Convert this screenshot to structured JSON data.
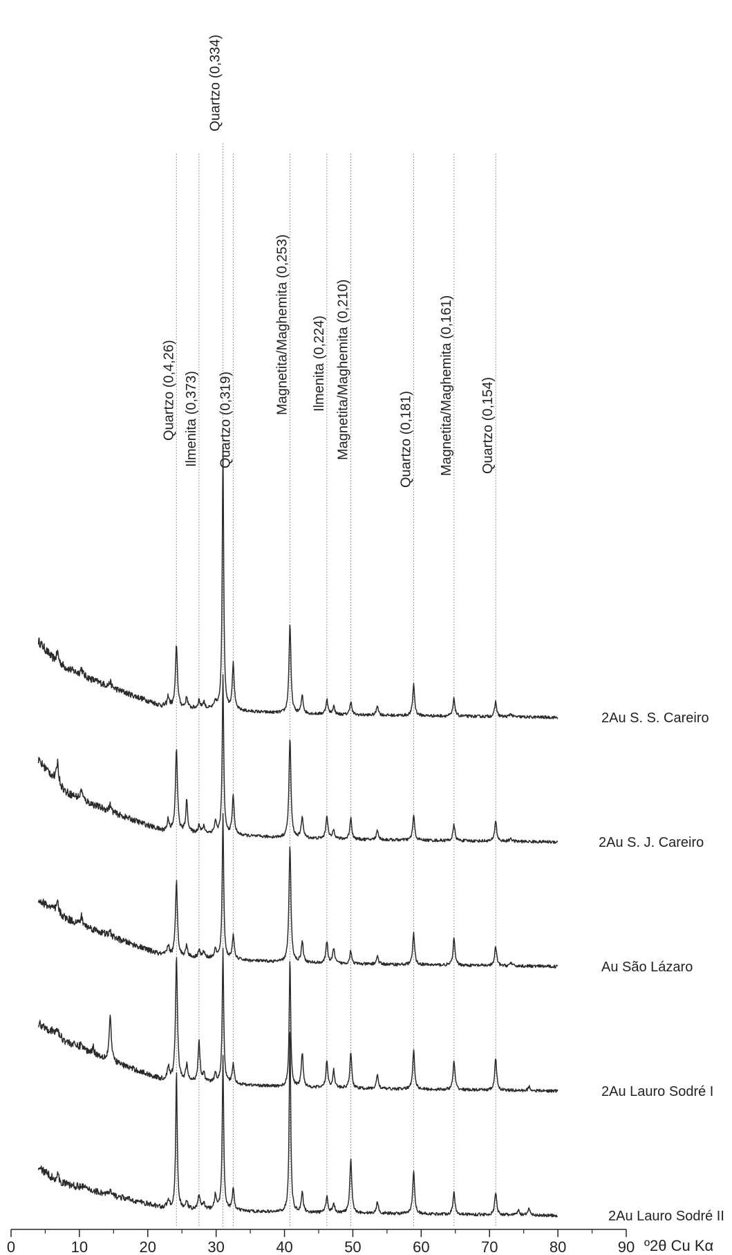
{
  "chart_data": {
    "type": "line",
    "title": "",
    "xlabel": "º2θ Cu Kα",
    "ylabel": "",
    "xlim": [
      0,
      90
    ],
    "x_ticks": [
      0,
      10,
      20,
      30,
      40,
      50,
      60,
      70,
      80,
      90
    ],
    "x_tick_labels": [
      "0",
      "10",
      "20",
      "30",
      "40",
      "50",
      "60",
      "70",
      "80",
      "90"
    ],
    "grid": false,
    "y_axis_shown": false,
    "reference_lines": [
      {
        "x": 24.2,
        "label": "Quartzo (0,4,26)"
      },
      {
        "x": 27.5,
        "label": "Ilmenita (0,373)"
      },
      {
        "x": 31.0,
        "label": "Quartzo (0,334)"
      },
      {
        "x": 32.5,
        "label": "Quartzo (0,319)"
      },
      {
        "x": 40.8,
        "label": "Magnetita/Maghemita (0,253)"
      },
      {
        "x": 46.2,
        "label": "Ilmenita (0,224)"
      },
      {
        "x": 49.7,
        "label": "Magnetita/Maghemita (0,210)"
      },
      {
        "x": 58.9,
        "label": "Quartzo (0,181)"
      },
      {
        "x": 64.8,
        "label": "Magnetita/Maghemita (0,161)"
      },
      {
        "x": 70.9,
        "label": "Quartzo (0,154)"
      }
    ],
    "series": [
      {
        "name": "2Au S. S. Careiro",
        "offset": 4,
        "baseline": [
          [
            4,
            0.92
          ],
          [
            6,
            0.72
          ],
          [
            8,
            0.6
          ],
          [
            12,
            0.45
          ],
          [
            16,
            0.32
          ],
          [
            20,
            0.2
          ],
          [
            22,
            0.14
          ],
          [
            26,
            0.11
          ],
          [
            30,
            0.1
          ],
          [
            35,
            0.07
          ],
          [
            40,
            0.05
          ],
          [
            50,
            0.03
          ],
          [
            60,
            0.02
          ],
          [
            70,
            0.01
          ],
          [
            80,
            0.0
          ]
        ],
        "peaks": [
          [
            6.8,
            0.12
          ],
          [
            10.3,
            0.08
          ],
          [
            14.5,
            0.06
          ],
          [
            23.0,
            0.12
          ],
          [
            24.2,
            0.75
          ],
          [
            25.7,
            0.13
          ],
          [
            27.5,
            0.1
          ],
          [
            28.2,
            0.08
          ],
          [
            29.9,
            0.08
          ],
          [
            31.0,
            3.15
          ],
          [
            32.5,
            0.55
          ],
          [
            40.8,
            1.07
          ],
          [
            42.6,
            0.22
          ],
          [
            46.2,
            0.18
          ],
          [
            47.2,
            0.1
          ],
          [
            49.7,
            0.16
          ],
          [
            53.6,
            0.12
          ],
          [
            58.9,
            0.38
          ],
          [
            64.8,
            0.21
          ],
          [
            70.9,
            0.18
          ],
          [
            73.1,
            0.04
          ]
        ]
      },
      {
        "name": "2Au S. J. Careiro",
        "offset": 3,
        "baseline": [
          [
            4,
            0.98
          ],
          [
            6,
            0.8
          ],
          [
            8,
            0.6
          ],
          [
            12,
            0.45
          ],
          [
            16,
            0.32
          ],
          [
            20,
            0.2
          ],
          [
            22,
            0.14
          ],
          [
            26,
            0.11
          ],
          [
            30,
            0.1
          ],
          [
            35,
            0.07
          ],
          [
            40,
            0.05
          ],
          [
            50,
            0.03
          ],
          [
            60,
            0.02
          ],
          [
            70,
            0.01
          ],
          [
            80,
            0.0
          ]
        ],
        "peaks": [
          [
            6.8,
            0.25
          ],
          [
            10.3,
            0.12
          ],
          [
            14.5,
            0.08
          ],
          [
            23.0,
            0.14
          ],
          [
            24.2,
            1.0
          ],
          [
            25.7,
            0.38
          ],
          [
            27.5,
            0.1
          ],
          [
            28.2,
            0.08
          ],
          [
            29.9,
            0.14
          ],
          [
            31.0,
            1.9
          ],
          [
            32.5,
            0.46
          ],
          [
            40.8,
            1.2
          ],
          [
            42.6,
            0.26
          ],
          [
            46.2,
            0.28
          ],
          [
            47.2,
            0.12
          ],
          [
            49.7,
            0.26
          ],
          [
            53.6,
            0.12
          ],
          [
            58.9,
            0.3
          ],
          [
            64.8,
            0.19
          ],
          [
            70.9,
            0.25
          ],
          [
            73.1,
            0.04
          ]
        ]
      },
      {
        "name": "Au São Lázaro",
        "offset": 2,
        "baseline": [
          [
            4,
            0.8
          ],
          [
            6,
            0.7
          ],
          [
            8,
            0.58
          ],
          [
            12,
            0.45
          ],
          [
            16,
            0.32
          ],
          [
            20,
            0.2
          ],
          [
            22,
            0.14
          ],
          [
            26,
            0.11
          ],
          [
            30,
            0.1
          ],
          [
            35,
            0.07
          ],
          [
            40,
            0.05
          ],
          [
            50,
            0.03
          ],
          [
            60,
            0.02
          ],
          [
            70,
            0.01
          ],
          [
            80,
            0.0
          ]
        ],
        "peaks": [
          [
            6.8,
            0.12
          ],
          [
            10.3,
            0.1
          ],
          [
            14.5,
            0.05
          ],
          [
            23.0,
            0.12
          ],
          [
            24.2,
            0.9
          ],
          [
            25.7,
            0.14
          ],
          [
            27.5,
            0.1
          ],
          [
            28.2,
            0.07
          ],
          [
            29.9,
            0.1
          ],
          [
            31.0,
            1.75
          ],
          [
            32.5,
            0.28
          ],
          [
            40.8,
            1.4
          ],
          [
            42.6,
            0.26
          ],
          [
            46.2,
            0.26
          ],
          [
            47.2,
            0.18
          ],
          [
            49.7,
            0.16
          ],
          [
            53.6,
            0.1
          ],
          [
            58.9,
            0.38
          ],
          [
            64.8,
            0.32
          ],
          [
            70.9,
            0.23
          ],
          [
            73.1,
            0.04
          ]
        ]
      },
      {
        "name": "2Au Lauro Sodré I",
        "offset": 1,
        "baseline": [
          [
            4,
            0.82
          ],
          [
            6,
            0.72
          ],
          [
            8,
            0.6
          ],
          [
            12,
            0.45
          ],
          [
            16,
            0.32
          ],
          [
            20,
            0.2
          ],
          [
            22,
            0.14
          ],
          [
            26,
            0.11
          ],
          [
            30,
            0.1
          ],
          [
            35,
            0.07
          ],
          [
            40,
            0.05
          ],
          [
            50,
            0.03
          ],
          [
            60,
            0.02
          ],
          [
            70,
            0.01
          ],
          [
            80,
            0.0
          ]
        ],
        "peaks": [
          [
            6.8,
            0.08
          ],
          [
            10.3,
            0.06
          ],
          [
            12.0,
            0.08
          ],
          [
            14.5,
            0.55
          ],
          [
            23.0,
            0.16
          ],
          [
            24.2,
            1.47
          ],
          [
            25.7,
            0.2
          ],
          [
            27.5,
            0.5
          ],
          [
            28.2,
            0.1
          ],
          [
            29.9,
            0.1
          ],
          [
            31.0,
            1.6
          ],
          [
            32.5,
            0.24
          ],
          [
            40.8,
            1.54
          ],
          [
            42.6,
            0.41
          ],
          [
            46.2,
            0.32
          ],
          [
            47.2,
            0.21
          ],
          [
            49.7,
            0.42
          ],
          [
            53.6,
            0.17
          ],
          [
            58.9,
            0.48
          ],
          [
            64.8,
            0.34
          ],
          [
            70.9,
            0.38
          ],
          [
            75.8,
            0.05
          ]
        ]
      },
      {
        "name": "2Au Lauro Sodré II",
        "offset": 0,
        "baseline": [
          [
            4,
            0.58
          ],
          [
            6,
            0.46
          ],
          [
            8,
            0.38
          ],
          [
            12,
            0.3
          ],
          [
            16,
            0.22
          ],
          [
            20,
            0.14
          ],
          [
            22,
            0.1
          ],
          [
            26,
            0.08
          ],
          [
            30,
            0.07
          ],
          [
            35,
            0.05
          ],
          [
            40,
            0.04
          ],
          [
            50,
            0.03
          ],
          [
            60,
            0.02
          ],
          [
            70,
            0.01
          ],
          [
            80,
            0.0
          ]
        ],
        "peaks": [
          [
            6.8,
            0.06
          ],
          [
            10.3,
            0.05
          ],
          [
            14.5,
            0.04
          ],
          [
            23.0,
            0.1
          ],
          [
            24.2,
            1.65
          ],
          [
            25.7,
            0.08
          ],
          [
            27.5,
            0.18
          ],
          [
            28.2,
            0.08
          ],
          [
            29.9,
            0.18
          ],
          [
            31.0,
            1.85
          ],
          [
            32.5,
            0.25
          ],
          [
            40.8,
            2.23
          ],
          [
            42.6,
            0.24
          ],
          [
            46.2,
            0.2
          ],
          [
            47.2,
            0.12
          ],
          [
            49.7,
            0.64
          ],
          [
            53.6,
            0.14
          ],
          [
            58.9,
            0.51
          ],
          [
            64.8,
            0.27
          ],
          [
            70.9,
            0.27
          ],
          [
            74.2,
            0.06
          ],
          [
            75.8,
            0.08
          ]
        ]
      }
    ]
  }
}
